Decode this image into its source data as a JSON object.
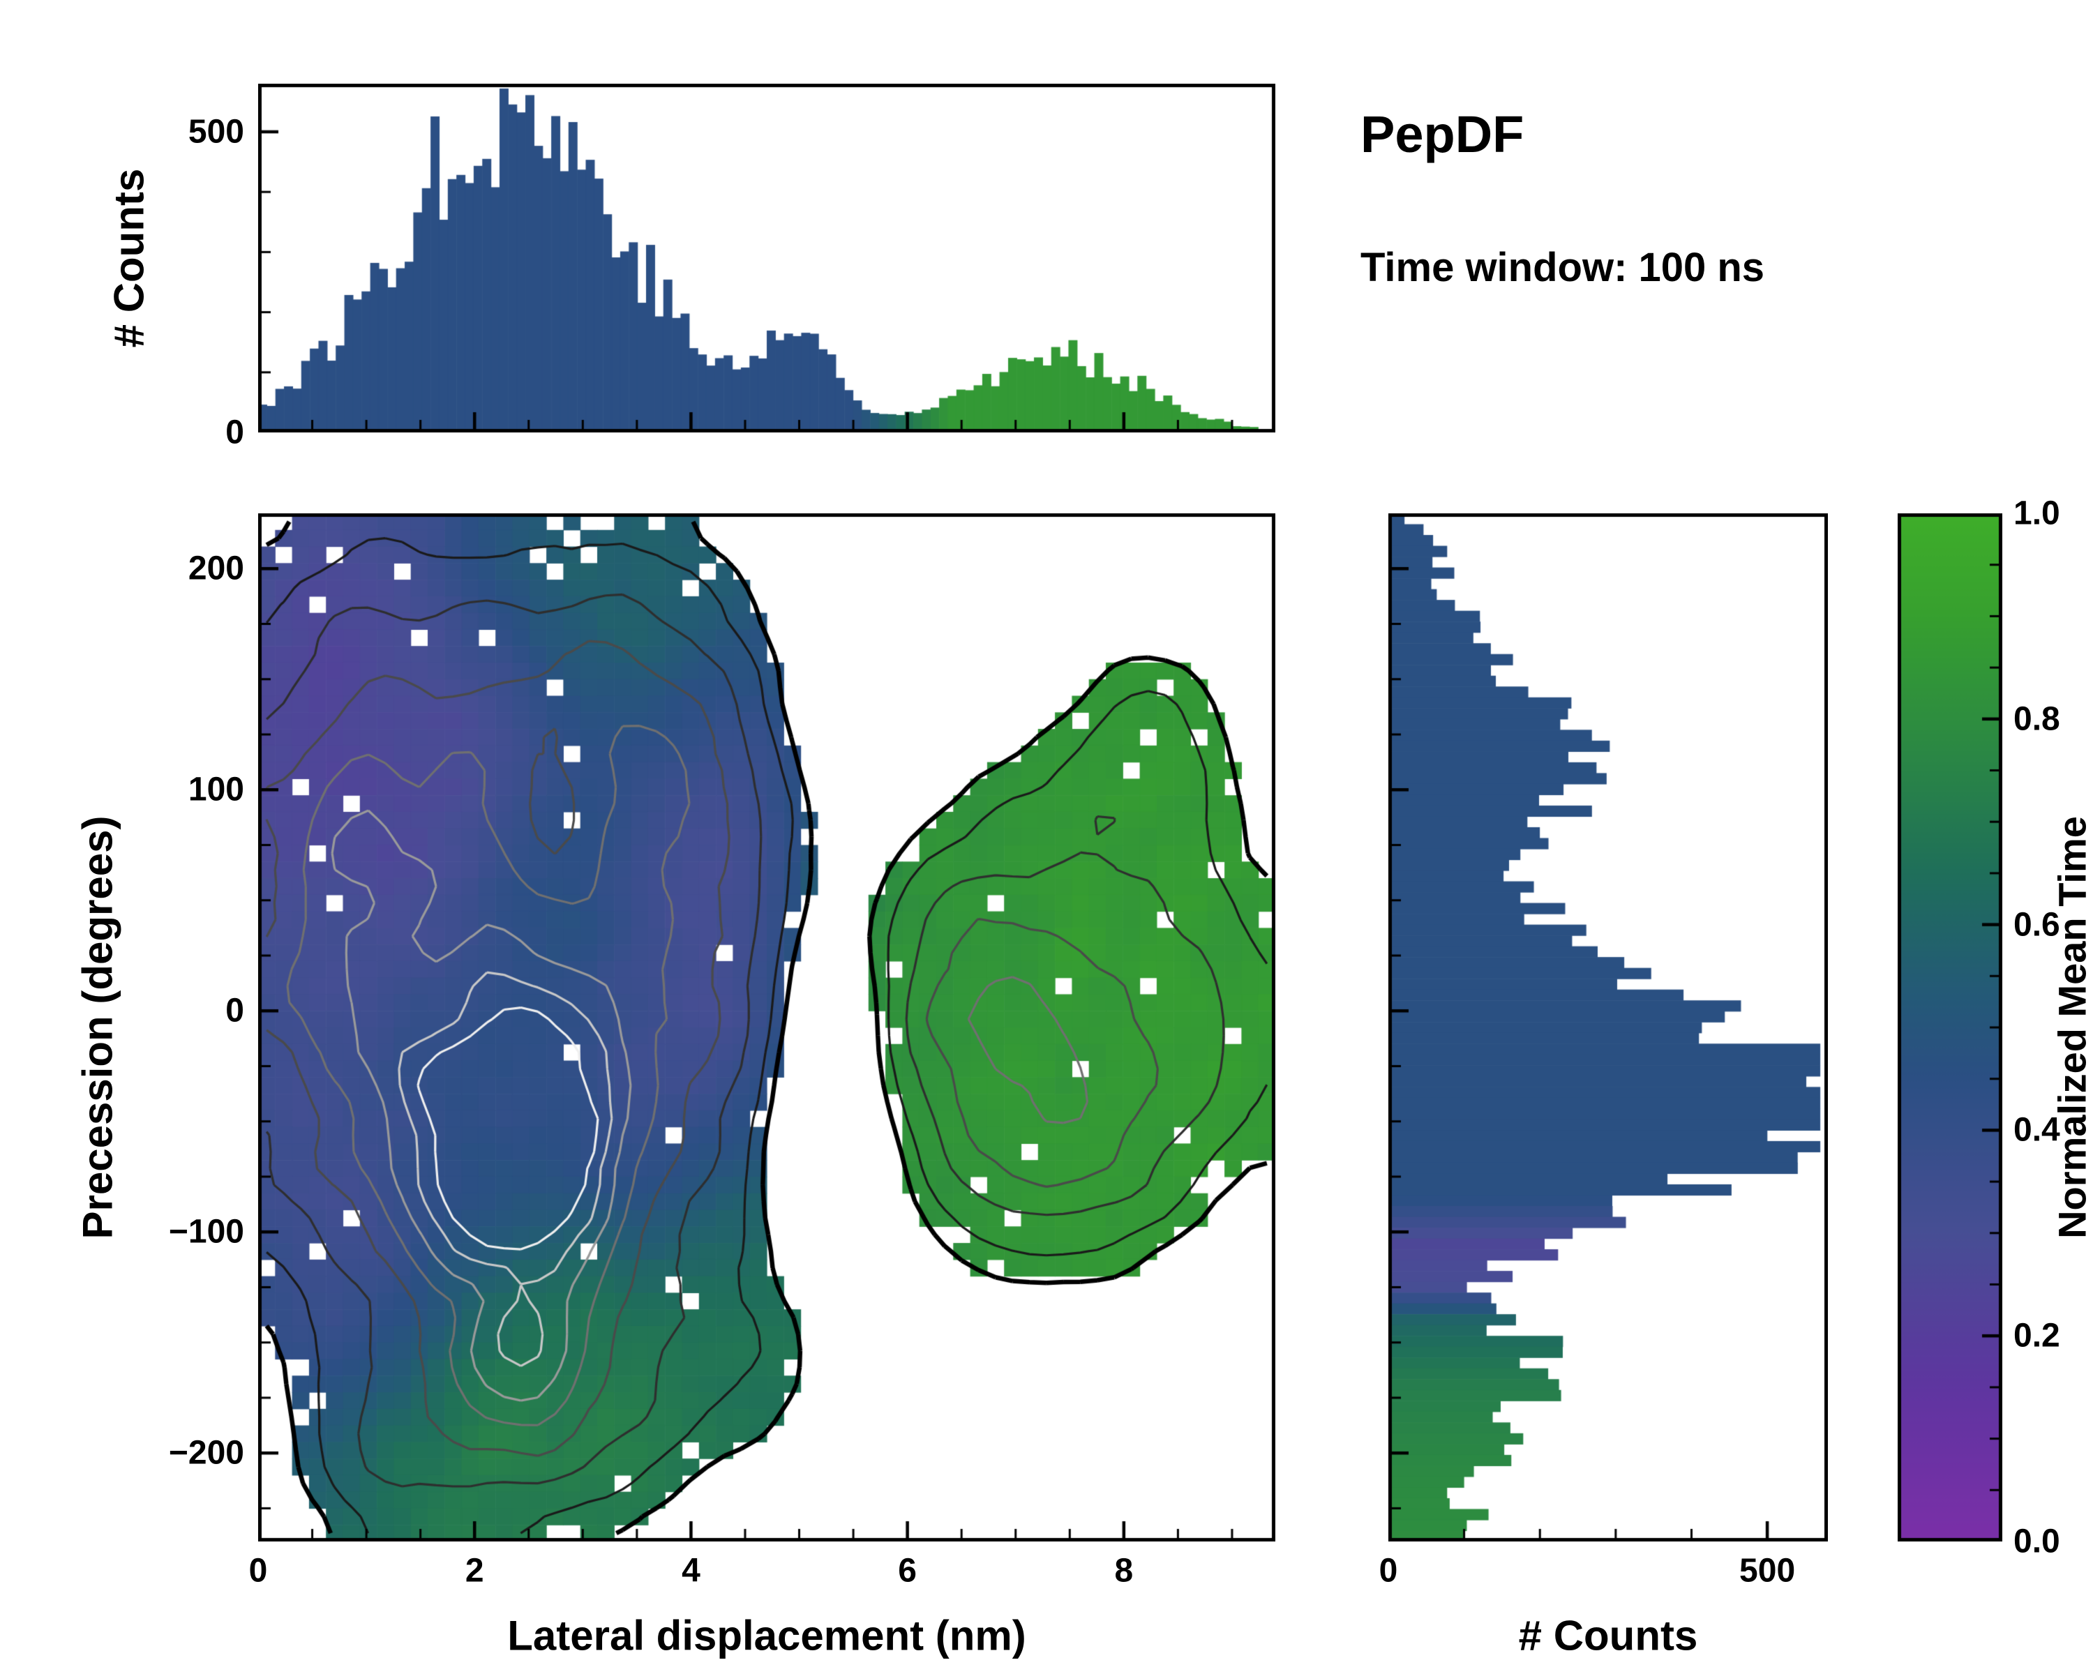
{
  "header": {
    "title": "PepDF",
    "subtitle": "Time window: 100 ns"
  },
  "axis_labels": {
    "top_y": "# Counts",
    "main_x": "Lateral displacement (nm)",
    "main_y": "Precession (degrees)",
    "right_x": "# Counts",
    "colorbar": "Normalized Mean Time"
  },
  "chart_data": {
    "type": "heatmap",
    "title": "PepDF",
    "subtitle": "Time window: 100 ns",
    "colormap_stops": [
      [
        0.0,
        "#7b2fa8"
      ],
      [
        0.15,
        "#5f35a0"
      ],
      [
        0.3,
        "#474e94"
      ],
      [
        0.45,
        "#2b4f84"
      ],
      [
        0.55,
        "#235c74"
      ],
      [
        0.65,
        "#1f6f5a"
      ],
      [
        0.78,
        "#2c8a42"
      ],
      [
        0.9,
        "#37a02f"
      ],
      [
        1.0,
        "#3fae2a"
      ]
    ],
    "colorbar": {
      "label": "Normalized Mean Time",
      "range": [
        0.0,
        1.0
      ],
      "ticks": [
        0.0,
        0.2,
        0.4,
        0.6,
        0.8,
        1.0
      ],
      "minor_step": 0.05
    },
    "main": {
      "xlabel": "Lateral displacement (nm)",
      "ylabel": "Precession (degrees)",
      "xlim": [
        0,
        9.4
      ],
      "ylim": [
        -240,
        225
      ],
      "x_ticks": [
        0,
        2,
        4,
        6,
        8
      ],
      "y_ticks": [
        200,
        100,
        0,
        -100,
        -200
      ],
      "x_minor_step": 0.5,
      "y_minor_step": 25,
      "grid_bins": [
        60,
        62
      ],
      "seed": 1337,
      "mask_threshold": 0.3,
      "value_noise": 0.05,
      "cell_dropout": {
        "edge": 0.1,
        "core": 0.022,
        "edge_density": 0.45
      },
      "density_clusters": [
        {
          "x": 2.2,
          "y": 30,
          "sx": 1.7,
          "sy": 115,
          "a": 1.0
        },
        {
          "x": 2.4,
          "y": -60,
          "sx": 0.6,
          "sy": 42,
          "a": 1.7
        },
        {
          "x": 1.9,
          "y": -60,
          "sx": 1.1,
          "sy": 60,
          "a": 0.5
        },
        {
          "x": 3.2,
          "y": 125,
          "sx": 0.9,
          "sy": 55,
          "a": 0.6
        },
        {
          "x": 1.0,
          "y": 100,
          "sx": 0.7,
          "sy": 80,
          "a": 0.45
        },
        {
          "x": 2.6,
          "y": -172,
          "sx": 1.0,
          "sy": 42,
          "a": 0.85
        },
        {
          "x": 2.45,
          "y": -160,
          "sx": 0.25,
          "sy": 14,
          "a": 0.9
        },
        {
          "x": 1.2,
          "y": -205,
          "sx": 0.55,
          "sy": 30,
          "a": 0.45
        },
        {
          "x": 4.3,
          "y": 20,
          "sx": 0.8,
          "sy": 90,
          "a": 0.55
        },
        {
          "x": 7.4,
          "y": 5,
          "sx": 1.15,
          "sy": 70,
          "a": 0.95
        },
        {
          "x": 7.5,
          "y": -55,
          "sx": 0.65,
          "sy": 38,
          "a": 0.55
        },
        {
          "x": 8.3,
          "y": 118,
          "sx": 0.5,
          "sy": 34,
          "a": 0.5
        },
        {
          "x": 8.9,
          "y": -10,
          "sx": 0.45,
          "sy": 45,
          "a": 0.3
        },
        {
          "x": 6.35,
          "y": -15,
          "sx": 0.55,
          "sy": 55,
          "a": 0.4
        },
        {
          "x": 5.0,
          "y": -150,
          "sx": 0.5,
          "sy": 45,
          "a": 0.35
        },
        {
          "x": 0.6,
          "y": 35,
          "sx": 0.5,
          "sy": 90,
          "a": 0.4
        }
      ],
      "density_holes": [
        {
          "x": 2.75,
          "y": 95,
          "sx": 0.33,
          "sy": 26,
          "a": -0.55
        },
        {
          "x": 5.25,
          "y": -35,
          "sx": 0.5,
          "sy": 75,
          "a": -0.8
        },
        {
          "x": 5.6,
          "y": 150,
          "sx": 0.5,
          "sy": 50,
          "a": -0.4
        }
      ],
      "value_clusters": [
        {
          "x": 2.5,
          "y": 0,
          "sx": 2.5,
          "sy": 160,
          "v": 0.45,
          "w": 0.6
        },
        {
          "x": 1.0,
          "y": 110,
          "sx": 0.8,
          "sy": 60,
          "v": 0.18,
          "w": 1.2
        },
        {
          "x": 4.35,
          "y": 30,
          "sx": 0.55,
          "sy": 60,
          "v": 0.22,
          "w": 1.2
        },
        {
          "x": 1.1,
          "y": -120,
          "sx": 0.6,
          "sy": 40,
          "v": 0.22,
          "w": 1.0
        },
        {
          "x": 2.1,
          "y": 135,
          "sx": 0.5,
          "sy": 35,
          "v": 0.3,
          "w": 0.8
        },
        {
          "x": 3.6,
          "y": -30,
          "sx": 0.5,
          "sy": 40,
          "v": 0.3,
          "w": 0.7
        },
        {
          "x": 0.6,
          "y": -30,
          "sx": 0.4,
          "sy": 50,
          "v": 0.3,
          "w": 0.7
        },
        {
          "x": 3.1,
          "y": 185,
          "sx": 0.8,
          "sy": 35,
          "v": 0.62,
          "w": 1.0
        },
        {
          "x": 2.7,
          "y": 55,
          "sx": 0.4,
          "sy": 30,
          "v": 0.55,
          "w": 0.5
        },
        {
          "x": 2.6,
          "y": -175,
          "sx": 1.1,
          "sy": 50,
          "v": 0.78,
          "w": 1.6
        },
        {
          "x": 4.6,
          "y": -140,
          "sx": 0.6,
          "sy": 50,
          "v": 0.7,
          "w": 1.0
        },
        {
          "x": 7.4,
          "y": 0,
          "sx": 1.3,
          "sy": 90,
          "v": 0.88,
          "w": 2.0
        },
        {
          "x": 6.3,
          "y": -20,
          "sx": 0.6,
          "sy": 60,
          "v": 0.85,
          "w": 1.5
        },
        {
          "x": 8.3,
          "y": 118,
          "sx": 0.6,
          "sy": 40,
          "v": 0.86,
          "w": 1.5
        },
        {
          "x": 2.4,
          "y": -60,
          "sx": 0.7,
          "sy": 45,
          "v": 0.42,
          "w": 1.0
        }
      ],
      "contour_levels": [
        {
          "level": 0.45,
          "color": "#1a1a1a"
        },
        {
          "level": 0.7,
          "color": "#2e2e2e"
        },
        {
          "level": 0.95,
          "color": "#4a4a4a"
        },
        {
          "level": 1.2,
          "color": "#707070"
        },
        {
          "level": 1.45,
          "color": "#9a9a9a"
        },
        {
          "level": 1.7,
          "color": "#c8c8c8"
        },
        {
          "level": 1.95,
          "color": "#efefef"
        }
      ]
    },
    "top_hist": {
      "type": "bar",
      "ylabel": "# Counts",
      "xlim": [
        0,
        9.4
      ],
      "ylim": [
        0,
        580
      ],
      "y_ticks": [
        0,
        500
      ],
      "y_minor_step": 100,
      "x_minor_step": 0.5,
      "bins": 118,
      "seed": 77,
      "peak_count": 555,
      "gaussian_components": [
        {
          "mu": 2.35,
          "sigma": 1.05,
          "amp": 540
        },
        {
          "mu": 5.0,
          "sigma": 0.33,
          "amp": 150
        },
        {
          "mu": 7.55,
          "sigma": 0.7,
          "amp": 120
        },
        {
          "mu": 6.5,
          "sigma": 0.5,
          "amp": 35
        }
      ],
      "color_profile": [
        [
          0,
          0.45
        ],
        [
          5.5,
          0.45
        ],
        [
          6.4,
          0.86
        ],
        [
          9.4,
          0.86
        ]
      ]
    },
    "right_hist": {
      "type": "bar",
      "orientation": "horizontal",
      "xlabel": "# Counts",
      "ylim": [
        -240,
        225
      ],
      "xlim": [
        0,
        580
      ],
      "x_ticks": [
        0,
        500
      ],
      "x_minor_step": 100,
      "y_minor_step": 25,
      "bins": 95,
      "seed": 99,
      "peak_count": 520,
      "gaussian_components": [
        {
          "mu": -55,
          "sigma": 28,
          "amp": 500
        },
        {
          "mu": -15,
          "sigma": 22,
          "amp": 330
        },
        {
          "mu": 30,
          "sigma": 25,
          "amp": 200
        },
        {
          "mu": 90,
          "sigma": 22,
          "amp": 190
        },
        {
          "mu": 130,
          "sigma": 18,
          "amp": 215
        },
        {
          "mu": 170,
          "sigma": 14,
          "amp": 120
        },
        {
          "mu": 205,
          "sigma": 12,
          "amp": 70
        },
        {
          "mu": -100,
          "sigma": 20,
          "amp": 120
        },
        {
          "mu": -160,
          "sigma": 22,
          "amp": 200
        },
        {
          "mu": -200,
          "sigma": 15,
          "amp": 110
        },
        {
          "mu": -232,
          "sigma": 10,
          "amp": 100
        }
      ],
      "color_profile": [
        [
          225,
          0.46
        ],
        [
          -85,
          0.46
        ],
        [
          -105,
          0.26
        ],
        [
          -125,
          0.3
        ],
        [
          -140,
          0.6
        ],
        [
          -170,
          0.72
        ],
        [
          -210,
          0.78
        ],
        [
          -240,
          0.8
        ]
      ]
    }
  }
}
